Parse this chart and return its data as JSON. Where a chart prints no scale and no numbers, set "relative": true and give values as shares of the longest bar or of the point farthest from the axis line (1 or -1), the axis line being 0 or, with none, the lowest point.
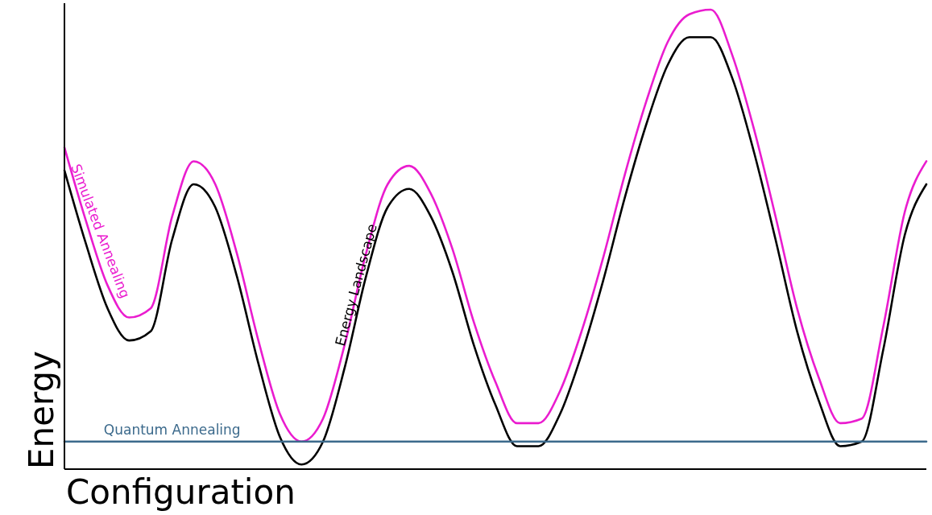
{
  "chart_data": {
    "type": "line",
    "relative": true,
    "xlabel": "Configuration",
    "ylabel": "Energy",
    "categories": [
      null,
      null,
      null,
      null,
      null,
      null,
      null,
      null,
      null,
      null,
      null,
      null,
      null,
      null,
      null,
      null,
      null,
      null,
      null,
      null,
      null,
      null,
      null,
      null,
      null,
      null,
      null,
      null,
      null,
      null,
      null,
      null,
      null,
      null,
      null,
      null,
      null,
      null,
      null,
      null,
      null
    ],
    "series": [
      {
        "name": "Energy Landscape",
        "color": "#000000",
        "values": [
          0.65,
          0.49,
          0.35,
          0.28,
          0.3,
          0.5,
          0.62,
          0.57,
          0.42,
          0.23,
          0.07,
          0.01,
          0.06,
          0.22,
          0.42,
          0.57,
          0.61,
          0.55,
          0.43,
          0.27,
          0.14,
          0.05,
          0.05,
          0.12,
          0.25,
          0.41,
          0.59,
          0.75,
          0.88,
          0.94,
          0.94,
          0.85,
          0.69,
          0.5,
          0.3,
          0.15,
          0.05,
          0.06,
          0.26,
          0.51,
          0.62
        ]
      },
      {
        "name": "Simulated Annealing",
        "color": "#ea1ccf",
        "values": [
          0.7,
          0.54,
          0.4,
          0.33,
          0.35,
          0.55,
          0.67,
          0.62,
          0.47,
          0.28,
          0.12,
          0.06,
          0.11,
          0.27,
          0.47,
          0.62,
          0.66,
          0.6,
          0.48,
          0.32,
          0.19,
          0.1,
          0.1,
          0.17,
          0.3,
          0.46,
          0.64,
          0.8,
          0.93,
          0.99,
          1.0,
          0.9,
          0.74,
          0.55,
          0.35,
          0.2,
          0.1,
          0.11,
          0.31,
          0.56,
          0.67
        ]
      },
      {
        "name": "Quantum Annealing",
        "color": "#3c6a8c",
        "values": [
          0.06,
          0.06,
          0.06,
          0.06,
          0.06,
          0.06,
          0.06,
          0.06,
          0.06,
          0.06,
          0.06,
          0.06,
          0.06,
          0.06,
          0.06,
          0.06,
          0.06,
          0.06,
          0.06,
          0.06,
          0.06,
          0.06,
          0.06,
          0.06,
          0.06,
          0.06,
          0.06,
          0.06,
          0.06,
          0.06,
          0.06,
          0.06,
          0.06,
          0.06,
          0.06,
          0.06,
          0.06,
          0.06,
          0.06,
          0.06,
          0.06
        ]
      }
    ]
  }
}
